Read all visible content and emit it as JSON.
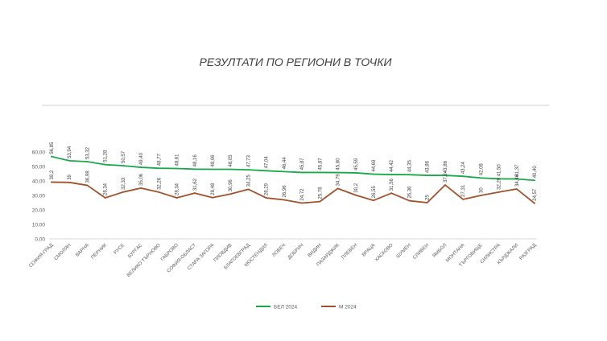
{
  "chart_data": {
    "type": "line",
    "title": "РЕЗУЛТАТИ ПО РЕГИОНИ В ТОЧКИ",
    "ylim": [
      0,
      60
    ],
    "yticks": [
      "0,00",
      "10,00",
      "20,00",
      "30,00",
      "40,00",
      "50,00",
      "60,00"
    ],
    "grid": false,
    "legend": "bottom",
    "categories": [
      "СОФИЯ-ГРАД",
      "СМОЛЯН",
      "ВАРНА",
      "ПЕРНИК",
      "РУСЕ",
      "БУРГАС",
      "ВЕЛИКО ТЪРНОВО",
      "ГАБРОВО",
      "СОФИЯ-ОБЛАСТ",
      "СТАРА ЗАГОРА",
      "ПЛОВДИВ",
      "БЛАГОЕВГРАД",
      "КЮСТЕНДИЛ",
      "ЛОВЕЧ",
      "ДОБРИЧ",
      "ВИДИН",
      "ПАЗАРДЖИК",
      "ПЛЕВЕН",
      "ВРАЦА",
      "ХАСКОВО",
      "ШУМЕН",
      "СЛИВЕН",
      "ЯМБОЛ",
      "МОНТАНА",
      "ТЪРГОВИЩЕ",
      "СИЛИСТРА",
      "КЪРДЖАЛИ",
      "РАЗГРАД"
    ],
    "series": [
      {
        "name": "БЕЛ 2024",
        "color": "#1aa84b",
        "values": [
          56.85,
          53.94,
          53.32,
          51.28,
          50.57,
          49.4,
          48.77,
          48.61,
          48.16,
          48.06,
          48.05,
          47.73,
          47.04,
          46.44,
          45.87,
          45.87,
          45.8,
          45.59,
          44.69,
          44.42,
          44.35,
          43.86,
          43.86,
          43.24,
          42.08,
          41.5,
          41.37,
          40.4
        ],
        "labels": [
          "56,85",
          "53,94",
          "53,32",
          "51,28",
          "50,57",
          "49,40",
          "48,77",
          "48,61",
          "48,16",
          "48,06",
          "48,05",
          "47,73",
          "47,04",
          "46,44",
          "45,87",
          "45,87",
          "45,80",
          "45,59",
          "44,69",
          "44,42",
          "44,35",
          "43,86",
          "43,86",
          "43,24",
          "42,08",
          "41,50",
          "41,37",
          "40,40"
        ]
      },
      {
        "name": "М 2024",
        "color": "#a0522d",
        "values": [
          39.2,
          39,
          36.98,
          28.34,
          32.33,
          35.06,
          32.26,
          28.34,
          31.62,
          28.48,
          30.96,
          34.25,
          28.29,
          26.96,
          24.72,
          25.78,
          34.79,
          30.2,
          26.55,
          31.56,
          26.36,
          25,
          37.24,
          27.31,
          30,
          32.29,
          34.46,
          24.57
        ],
        "labels": [
          "39,2",
          "39",
          "36,98",
          "28,34",
          "32,33",
          "35,06",
          "32,26",
          "28,34",
          "31,62",
          "28,48",
          "30,96",
          "34,25",
          "28,29",
          "26,96",
          "24,72",
          "25,78",
          "34,79",
          "30,2",
          "26,55",
          "31,56",
          "26,36",
          "25",
          "37,24",
          "27,31",
          "30",
          "32,29",
          "34,46",
          "24,57"
        ]
      }
    ]
  }
}
